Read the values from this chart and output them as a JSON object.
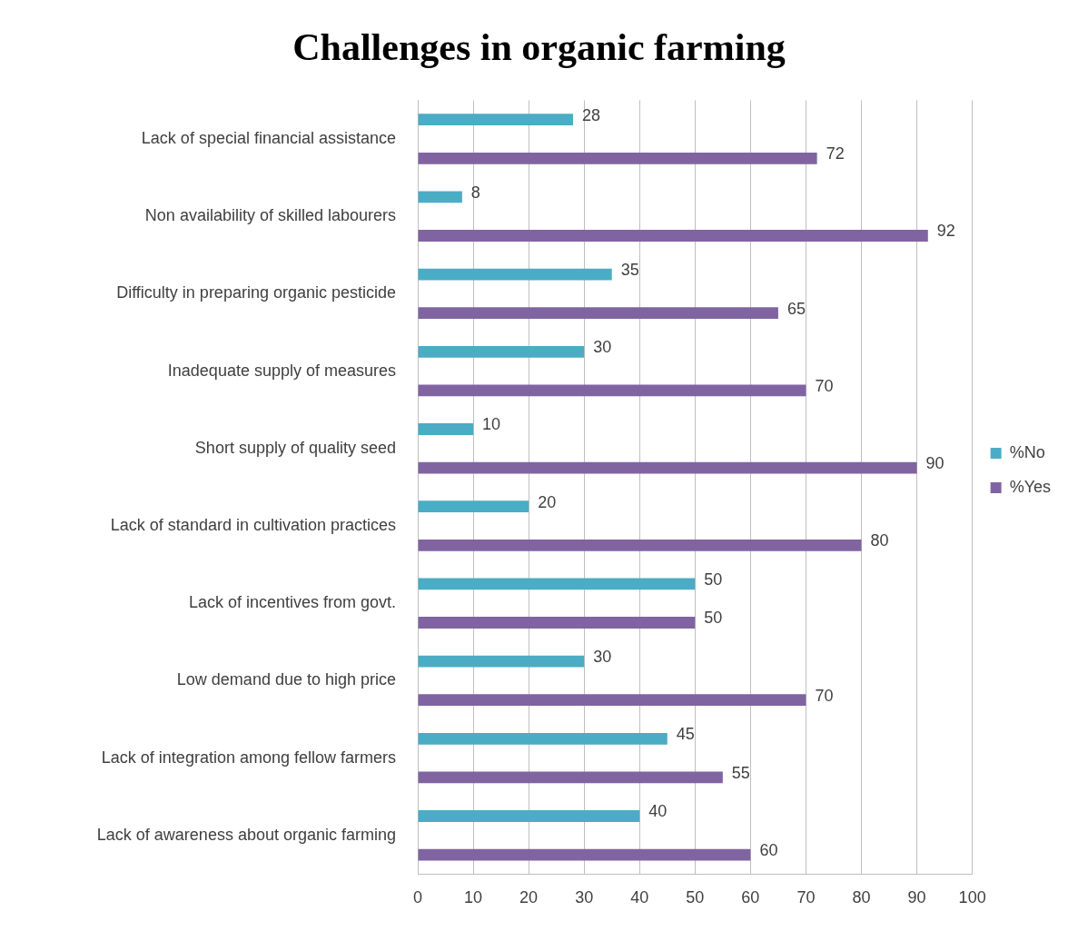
{
  "chart_data": {
    "type": "bar",
    "orientation": "horizontal",
    "title": "Challenges in organic farming",
    "categories": [
      "Lack of special financial assistance",
      "Non availability of skilled labourers",
      "Difficulty in preparing organic pesticide",
      "Inadequate supply of measures",
      "Short supply of quality seed",
      "Lack of standard in cultivation practices",
      "Lack of incentives from govt.",
      "Low demand due to high price",
      "Lack of integration among fellow farmers",
      "Lack of awareness about organic farming"
    ],
    "series": [
      {
        "name": "%No",
        "color": "#4bacc6",
        "values": [
          28,
          8,
          35,
          30,
          10,
          20,
          50,
          30,
          45,
          40
        ]
      },
      {
        "name": "%Yes",
        "color": "#8064a2",
        "values": [
          72,
          92,
          65,
          70,
          90,
          80,
          50,
          70,
          55,
          60
        ]
      }
    ],
    "xlim": [
      0,
      100
    ],
    "xticks": [
      0,
      10,
      20,
      30,
      40,
      50,
      60,
      70,
      80,
      90,
      100
    ],
    "grid": "x",
    "legend": "right",
    "data_labels": true
  }
}
